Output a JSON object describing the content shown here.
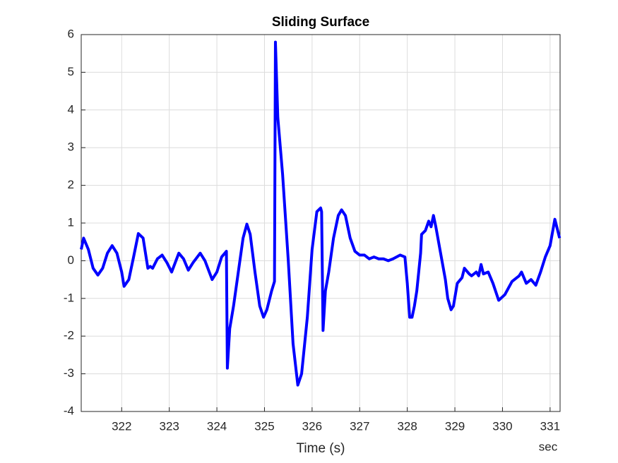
{
  "chart_data": {
    "type": "line",
    "title": "Sliding Surface",
    "xlabel": "Time (s)",
    "x_unit_label": "sec",
    "x": [
      321.15,
      321.2,
      321.3,
      321.4,
      321.5,
      321.6,
      321.7,
      321.8,
      321.9,
      322.0,
      322.05,
      322.15,
      322.25,
      322.35,
      322.45,
      322.5,
      322.55,
      322.6,
      322.65,
      322.75,
      322.85,
      322.95,
      323.05,
      323.2,
      323.3,
      323.4,
      323.5,
      323.65,
      323.75,
      323.9,
      324.0,
      324.1,
      324.2,
      324.22,
      324.27,
      324.35,
      324.45,
      324.55,
      324.63,
      324.7,
      324.8,
      324.9,
      324.98,
      325.05,
      325.15,
      325.21,
      325.23,
      325.28,
      325.38,
      325.5,
      325.6,
      325.7,
      325.78,
      325.9,
      326.0,
      326.1,
      326.18,
      326.2,
      326.23,
      326.28,
      326.35,
      326.45,
      326.55,
      326.62,
      326.7,
      326.8,
      326.9,
      327.0,
      327.1,
      327.2,
      327.3,
      327.4,
      327.5,
      327.6,
      327.7,
      327.85,
      327.95,
      328.0,
      328.05,
      328.1,
      328.15,
      328.2,
      328.28,
      328.3,
      328.38,
      328.45,
      328.5,
      328.55,
      328.6,
      328.7,
      328.8,
      328.85,
      328.92,
      328.97,
      329.05,
      329.15,
      329.2,
      329.3,
      329.35,
      329.45,
      329.5,
      329.55,
      329.6,
      329.7,
      329.8,
      329.92,
      330.05,
      330.2,
      330.35,
      330.4,
      330.5,
      330.6,
      330.7,
      330.8,
      330.9,
      331.0,
      331.1,
      331.2
    ],
    "series": [
      {
        "name": "Sliding Surface",
        "color": "#0000ff",
        "values": [
          0.3,
          0.6,
          0.3,
          -0.2,
          -0.38,
          -0.2,
          0.2,
          0.4,
          0.2,
          -0.3,
          -0.68,
          -0.5,
          0.1,
          0.72,
          0.6,
          0.2,
          -0.2,
          -0.15,
          -0.2,
          0.05,
          0.15,
          -0.05,
          -0.3,
          0.2,
          0.05,
          -0.25,
          -0.05,
          0.2,
          0.0,
          -0.5,
          -0.3,
          0.1,
          0.25,
          -2.85,
          -1.8,
          -1.2,
          -0.3,
          0.6,
          0.97,
          0.7,
          -0.3,
          -1.2,
          -1.5,
          -1.3,
          -0.8,
          -0.55,
          5.8,
          3.8,
          2.3,
          0.0,
          -2.2,
          -3.3,
          -3.0,
          -1.5,
          0.3,
          1.3,
          1.4,
          1.3,
          -1.85,
          -0.8,
          -0.3,
          0.6,
          1.2,
          1.35,
          1.2,
          0.6,
          0.25,
          0.15,
          0.15,
          0.05,
          0.1,
          0.05,
          0.05,
          0.0,
          0.05,
          0.15,
          0.1,
          -0.6,
          -1.5,
          -1.5,
          -1.2,
          -0.8,
          0.2,
          0.7,
          0.8,
          1.05,
          0.9,
          1.2,
          0.9,
          0.2,
          -0.5,
          -1.0,
          -1.3,
          -1.2,
          -0.6,
          -0.45,
          -0.2,
          -0.35,
          -0.4,
          -0.3,
          -0.4,
          -0.1,
          -0.35,
          -0.3,
          -0.6,
          -1.05,
          -0.9,
          -0.55,
          -0.4,
          -0.3,
          -0.6,
          -0.5,
          -0.65,
          -0.3,
          0.1,
          0.4,
          1.1,
          0.6
        ]
      }
    ],
    "xlim": [
      321.15,
      331.21
    ],
    "ylim": [
      -4,
      6
    ],
    "xticks": [
      322,
      323,
      324,
      325,
      326,
      327,
      328,
      329,
      330,
      331
    ],
    "yticks": [
      -4,
      -3,
      -2,
      -1,
      0,
      1,
      2,
      3,
      4,
      5,
      6
    ],
    "grid": true
  }
}
